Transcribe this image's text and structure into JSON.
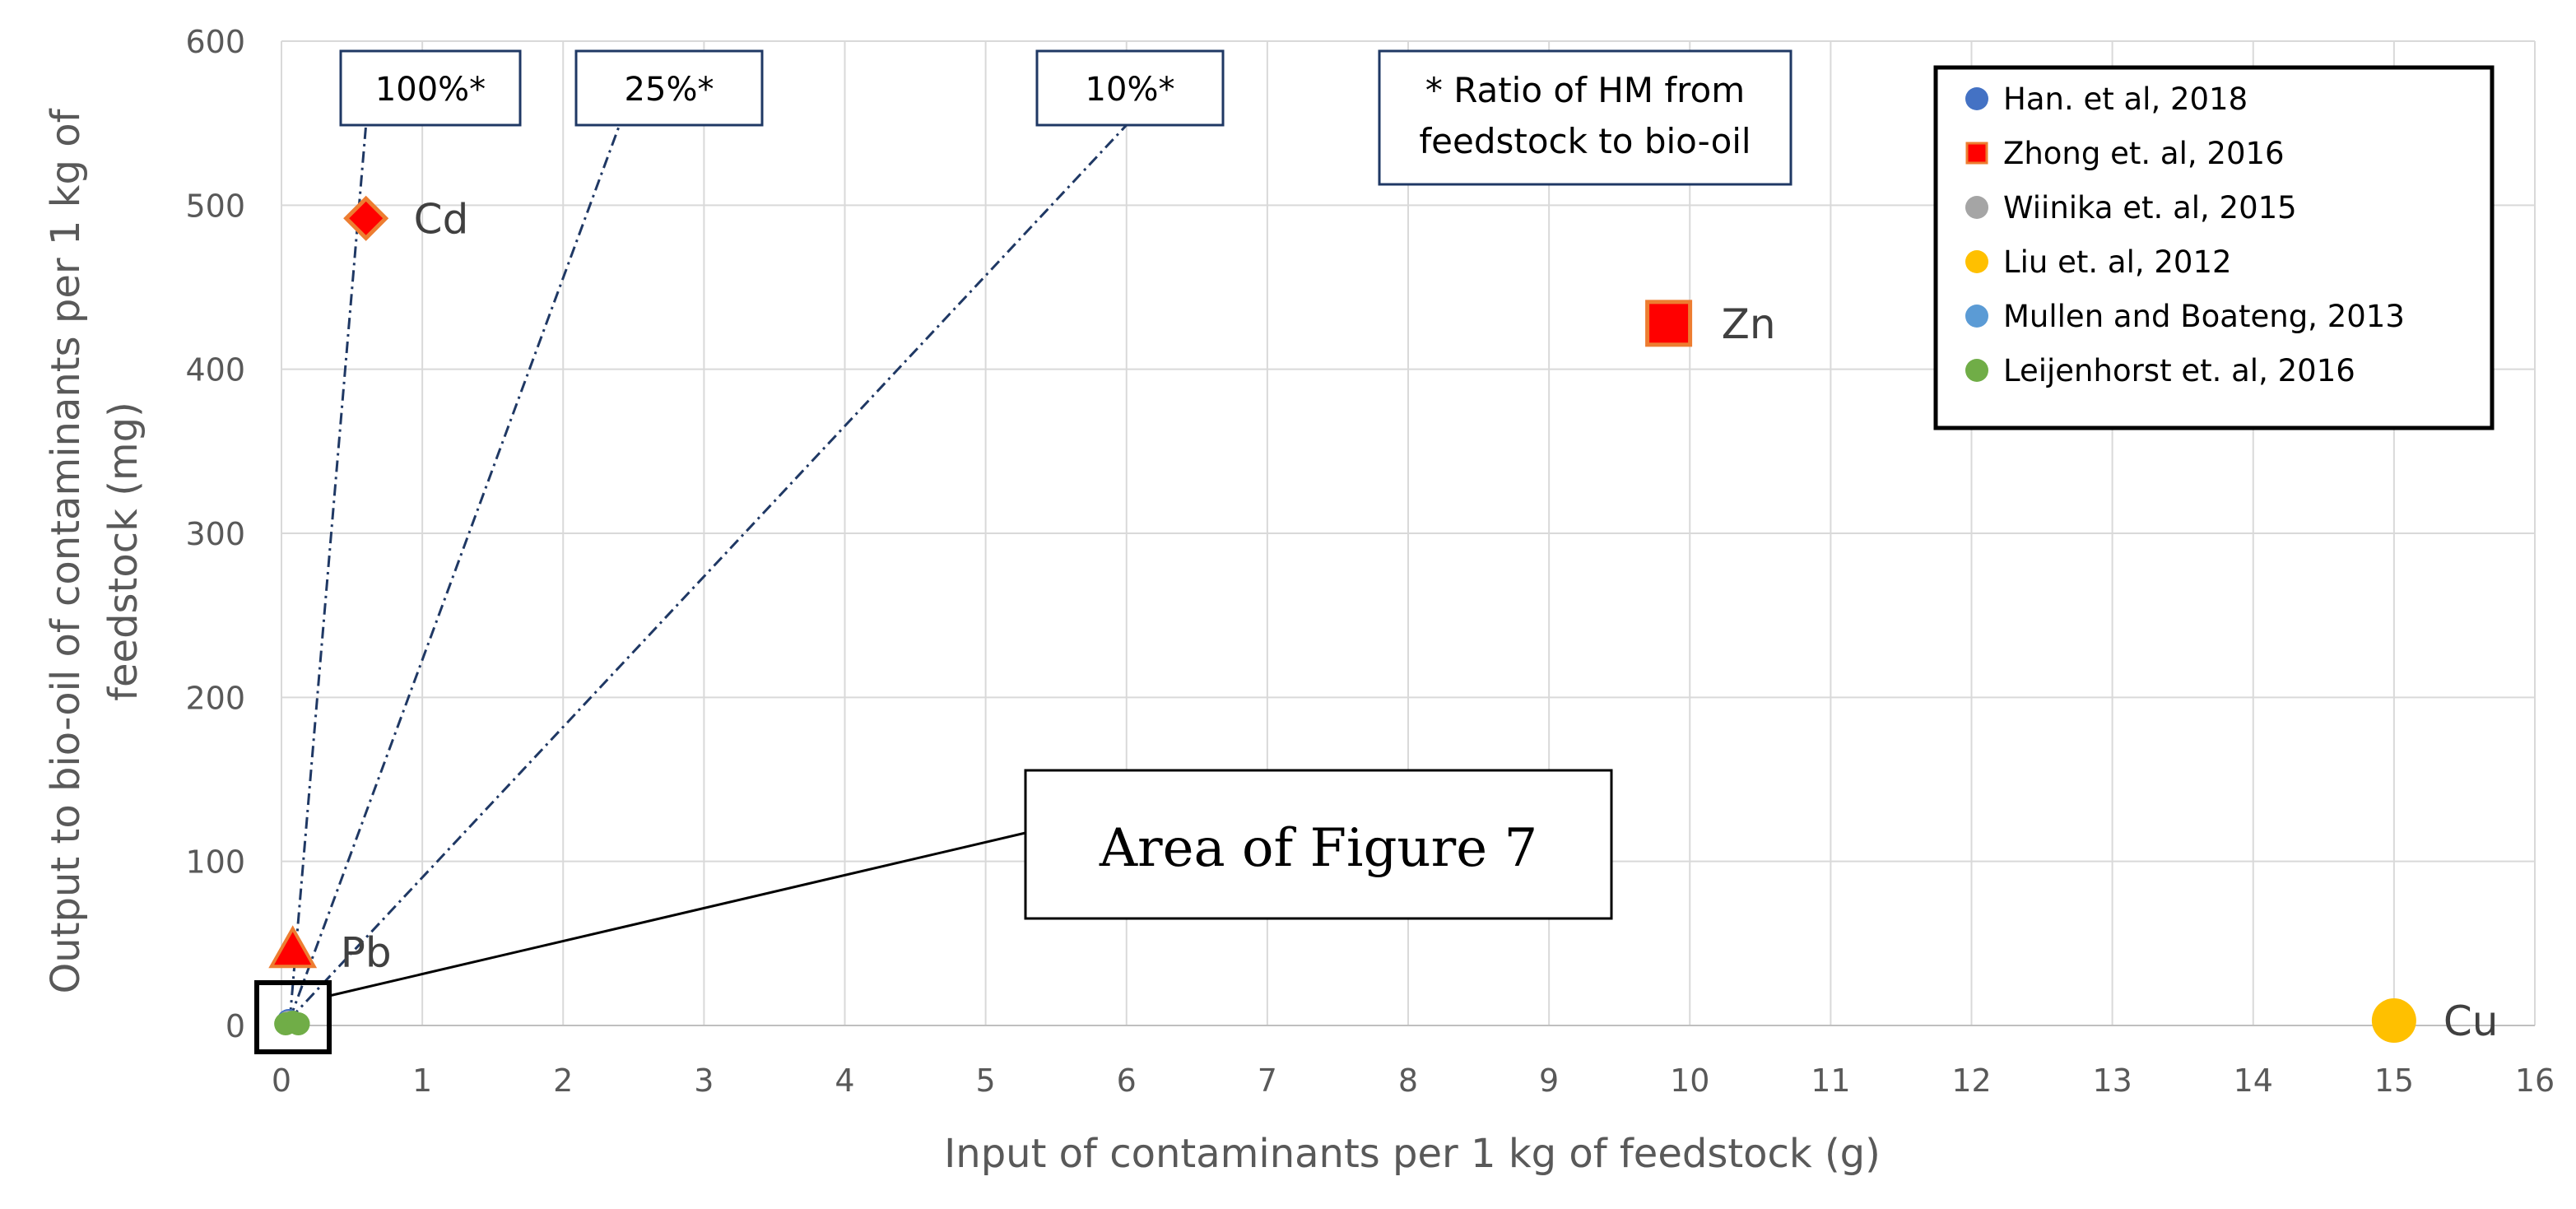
{
  "chart_data": {
    "type": "scatter",
    "xlabel": "Input of contaminants per 1 kg of feedstock (g)",
    "ylabel_lines": [
      "Output to bio-oil of contaminants per 1 kg of",
      "feedstock (mg)"
    ],
    "xlim": [
      0,
      16
    ],
    "ylim": [
      0,
      600
    ],
    "x_ticks": [
      0,
      1,
      2,
      3,
      4,
      5,
      6,
      7,
      8,
      9,
      10,
      11,
      12,
      13,
      14,
      15,
      16
    ],
    "y_ticks": [
      0,
      100,
      200,
      300,
      400,
      500,
      600
    ],
    "grid": true,
    "legend_position": "top-right",
    "series": [
      {
        "name": "Han. et al, 2018",
        "marker": "circle",
        "color": "#4472c4",
        "points": [
          {
            "x": 0.05,
            "y": 3
          }
        ]
      },
      {
        "name": "Zhong et. al, 2016",
        "marker": "square",
        "color": "#ff0000",
        "edge": "#ed7d31",
        "points": [
          {
            "x": 9.85,
            "y": 428,
            "label": "Zn"
          }
        ]
      },
      {
        "name": "Wiinika et. al, 2015",
        "marker": "circle",
        "color": "#a5a5a5",
        "points": [
          {
            "x": 0.05,
            "y": 2
          }
        ]
      },
      {
        "name": "Liu et. al, 2012",
        "marker": "circle",
        "color": "#ffc000",
        "points": [
          {
            "x": 15.0,
            "y": 3,
            "label": "Cu"
          }
        ]
      },
      {
        "name": "Mullen and Boateng, 2013",
        "marker": "circle",
        "color": "#5b9bd5",
        "points": [
          {
            "x": 0.08,
            "y": 2
          }
        ]
      },
      {
        "name": "Leijenhorst et. al, 2016",
        "marker": "circle",
        "color": "#70ad47",
        "points": [
          {
            "x": 0.03,
            "y": 1
          },
          {
            "x": 0.08,
            "y": 2
          },
          {
            "x": 0.12,
            "y": 1
          }
        ]
      }
    ],
    "extra_points": [
      {
        "marker": "diamond",
        "color": "#ff0000",
        "edge": "#ed7d31",
        "x": 0.6,
        "y": 492,
        "label": "Cd"
      },
      {
        "marker": "triangle",
        "color": "#ff0000",
        "edge": "#ed7d31",
        "x": 0.08,
        "y": 45,
        "label": "Pb"
      }
    ],
    "ratio_lines": [
      {
        "label": "100%*",
        "end_x": 0.6
      },
      {
        "label": "25%*",
        "end_x": 2.4
      },
      {
        "label": "10%*",
        "end_x": 6.0
      }
    ],
    "note": [
      "* Ratio of HM from",
      "feedstock to bio-oil"
    ],
    "callout": "Area of Figure 7"
  }
}
